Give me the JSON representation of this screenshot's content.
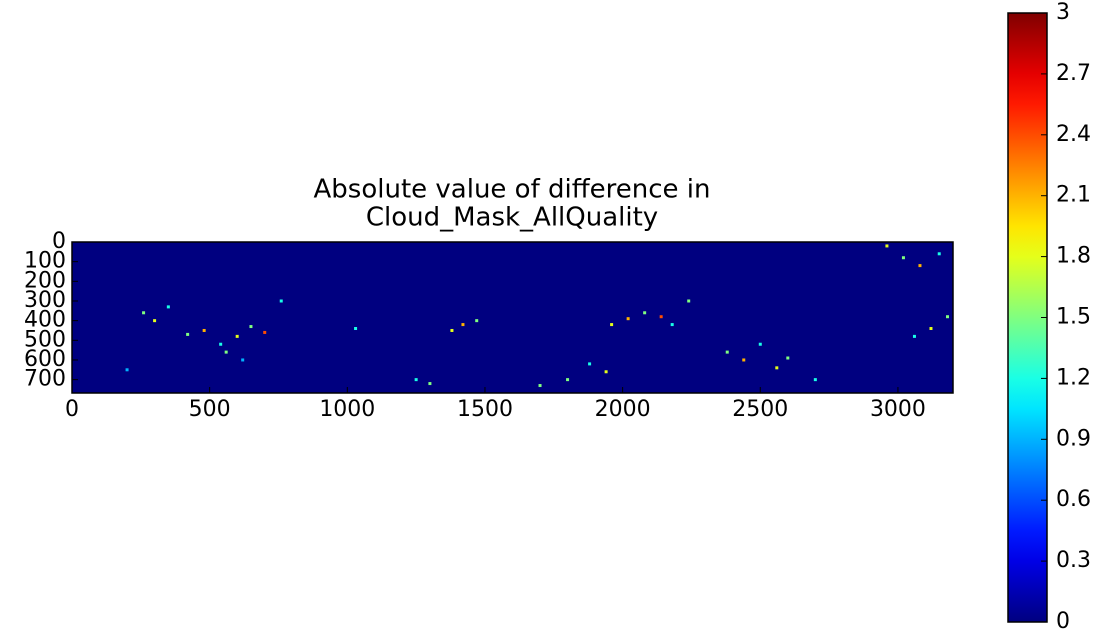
{
  "chart_data": {
    "type": "heatmap",
    "title": [
      "Absolute value of difference in",
      "Cloud_Mask_AllQuality"
    ],
    "xlim": [
      0,
      3200
    ],
    "xticks": [
      0,
      500,
      1000,
      1500,
      2000,
      2500,
      3000
    ],
    "ylim": [
      768,
      0
    ],
    "yticks": [
      0,
      100,
      200,
      300,
      400,
      500,
      600,
      700
    ],
    "colormap": "jet",
    "clim": [
      0,
      3
    ],
    "cticks": [
      0,
      0.3,
      0.6,
      0.9,
      1.2,
      1.5,
      1.8,
      2.1,
      2.4,
      2.7,
      3
    ],
    "points": {
      "x": [
        260,
        300,
        350,
        420,
        480,
        540,
        600,
        650,
        700,
        760,
        560,
        620,
        1380,
        1420,
        1470,
        1250,
        1300,
        1960,
        2020,
        2080,
        2140,
        2180,
        2240,
        1880,
        1800,
        1940,
        2380,
        2440,
        2500,
        2560,
        2600,
        2700,
        2960,
        3020,
        3080,
        3150,
        3180,
        3120,
        3060,
        1030,
        200,
        1700
      ],
      "y": [
        360,
        400,
        330,
        470,
        450,
        520,
        480,
        430,
        460,
        300,
        560,
        600,
        450,
        420,
        400,
        700,
        720,
        420,
        390,
        360,
        380,
        420,
        300,
        620,
        700,
        660,
        560,
        600,
        520,
        640,
        590,
        700,
        20,
        80,
        120,
        60,
        380,
        440,
        480,
        440,
        650,
        730
      ],
      "values": [
        1.5,
        1.8,
        1.2,
        1.5,
        2.1,
        1.2,
        1.8,
        1.5,
        2.4,
        1.2,
        1.5,
        0.9,
        1.8,
        2.1,
        1.5,
        1.2,
        1.5,
        1.8,
        2.1,
        1.5,
        2.4,
        1.2,
        1.5,
        1.2,
        1.5,
        1.8,
        1.5,
        2.1,
        1.2,
        1.8,
        1.5,
        1.2,
        1.8,
        1.5,
        2.1,
        1.2,
        1.5,
        1.8,
        1.2,
        1.2,
        0.9,
        1.5
      ]
    }
  }
}
